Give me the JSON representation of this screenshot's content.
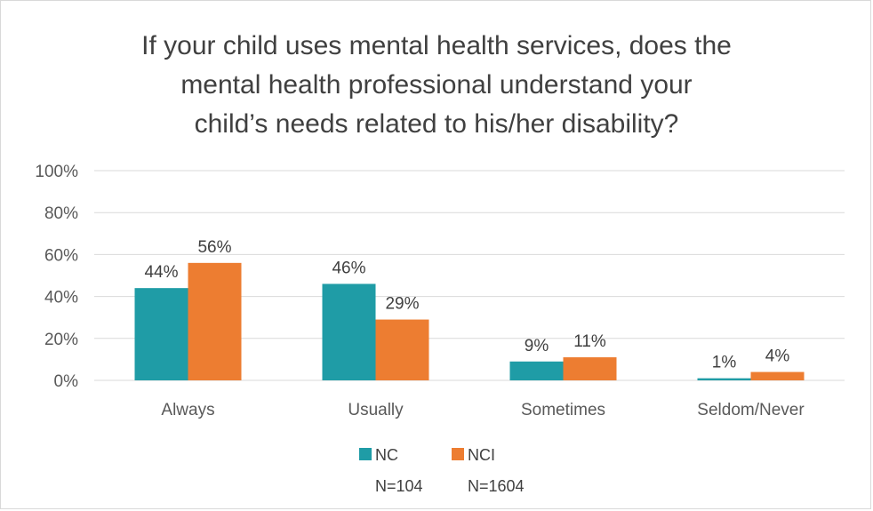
{
  "chart_data": {
    "type": "bar",
    "title_lines": [
      "If your child uses mental health services, does the",
      "mental health professional understand your",
      "child’s needs related to his/her disability?"
    ],
    "categories": [
      "Always",
      "Usually",
      "Sometimes",
      "Seldom/Never"
    ],
    "series": [
      {
        "name": "NC",
        "sample": "N=104",
        "color": "#1f9ca6",
        "values": [
          44,
          46,
          9,
          1
        ],
        "labels": [
          "44%",
          "46%",
          "9%",
          "1%"
        ]
      },
      {
        "name": "NCI",
        "sample": "N=1604",
        "color": "#ed7d31",
        "values": [
          56,
          29,
          11,
          4
        ],
        "labels": [
          "56%",
          "29%",
          "11%",
          "4%"
        ]
      }
    ],
    "ylim": [
      0,
      100
    ],
    "y_ticks": [
      0,
      20,
      40,
      60,
      80,
      100
    ],
    "y_tick_labels": [
      "0%",
      "20%",
      "40%",
      "60%",
      "80%",
      "100%"
    ],
    "grid": true,
    "legend_position": "bottom",
    "gridline_color": "#d9d9d9"
  }
}
